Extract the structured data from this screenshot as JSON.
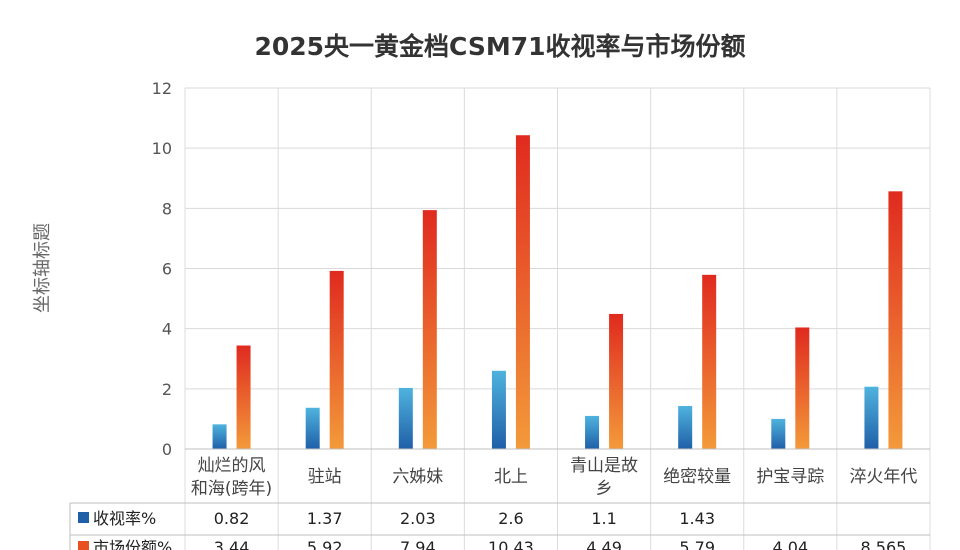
{
  "chart_data": {
    "type": "bar",
    "title": "2025央一黄金档CSM71收视率与市场份额",
    "ylabel": "坐标轴标题",
    "xlabel": "",
    "ylim": [
      0,
      12
    ],
    "yticks": [
      0,
      2,
      4,
      6,
      8,
      10,
      12
    ],
    "grid": true,
    "legend": "in-table",
    "categories": [
      [
        "灿烂的风",
        "和海(跨年)"
      ],
      [
        "驻站"
      ],
      [
        "六姊妹"
      ],
      [
        "北上"
      ],
      [
        "青山是故",
        "乡"
      ],
      [
        "绝密较量"
      ],
      [
        "护宝寻踪"
      ],
      [
        "淬火年代"
      ]
    ],
    "series": [
      {
        "name": "收视率%",
        "values": [
          0.82,
          1.37,
          2.03,
          2.6,
          1.1,
          1.43,
          1.0,
          2.07
        ],
        "labels": [
          "0.82",
          "1.37",
          "2.03",
          "2.6",
          "1.1",
          "1.43",
          "",
          ""
        ],
        "color_top": "#4fb3de",
        "color_bottom": "#1f5fa8"
      },
      {
        "name": "市场份额%",
        "values": [
          3.44,
          5.92,
          7.94,
          10.43,
          4.49,
          5.79,
          4.04,
          8.565
        ],
        "labels": [
          "3.44",
          "5.92",
          "7.94",
          "10.43",
          "4.49",
          "5.79",
          "4.04",
          "8.565"
        ],
        "color_top": "#e02a1f",
        "color_bottom": "#f39a3a"
      }
    ]
  }
}
